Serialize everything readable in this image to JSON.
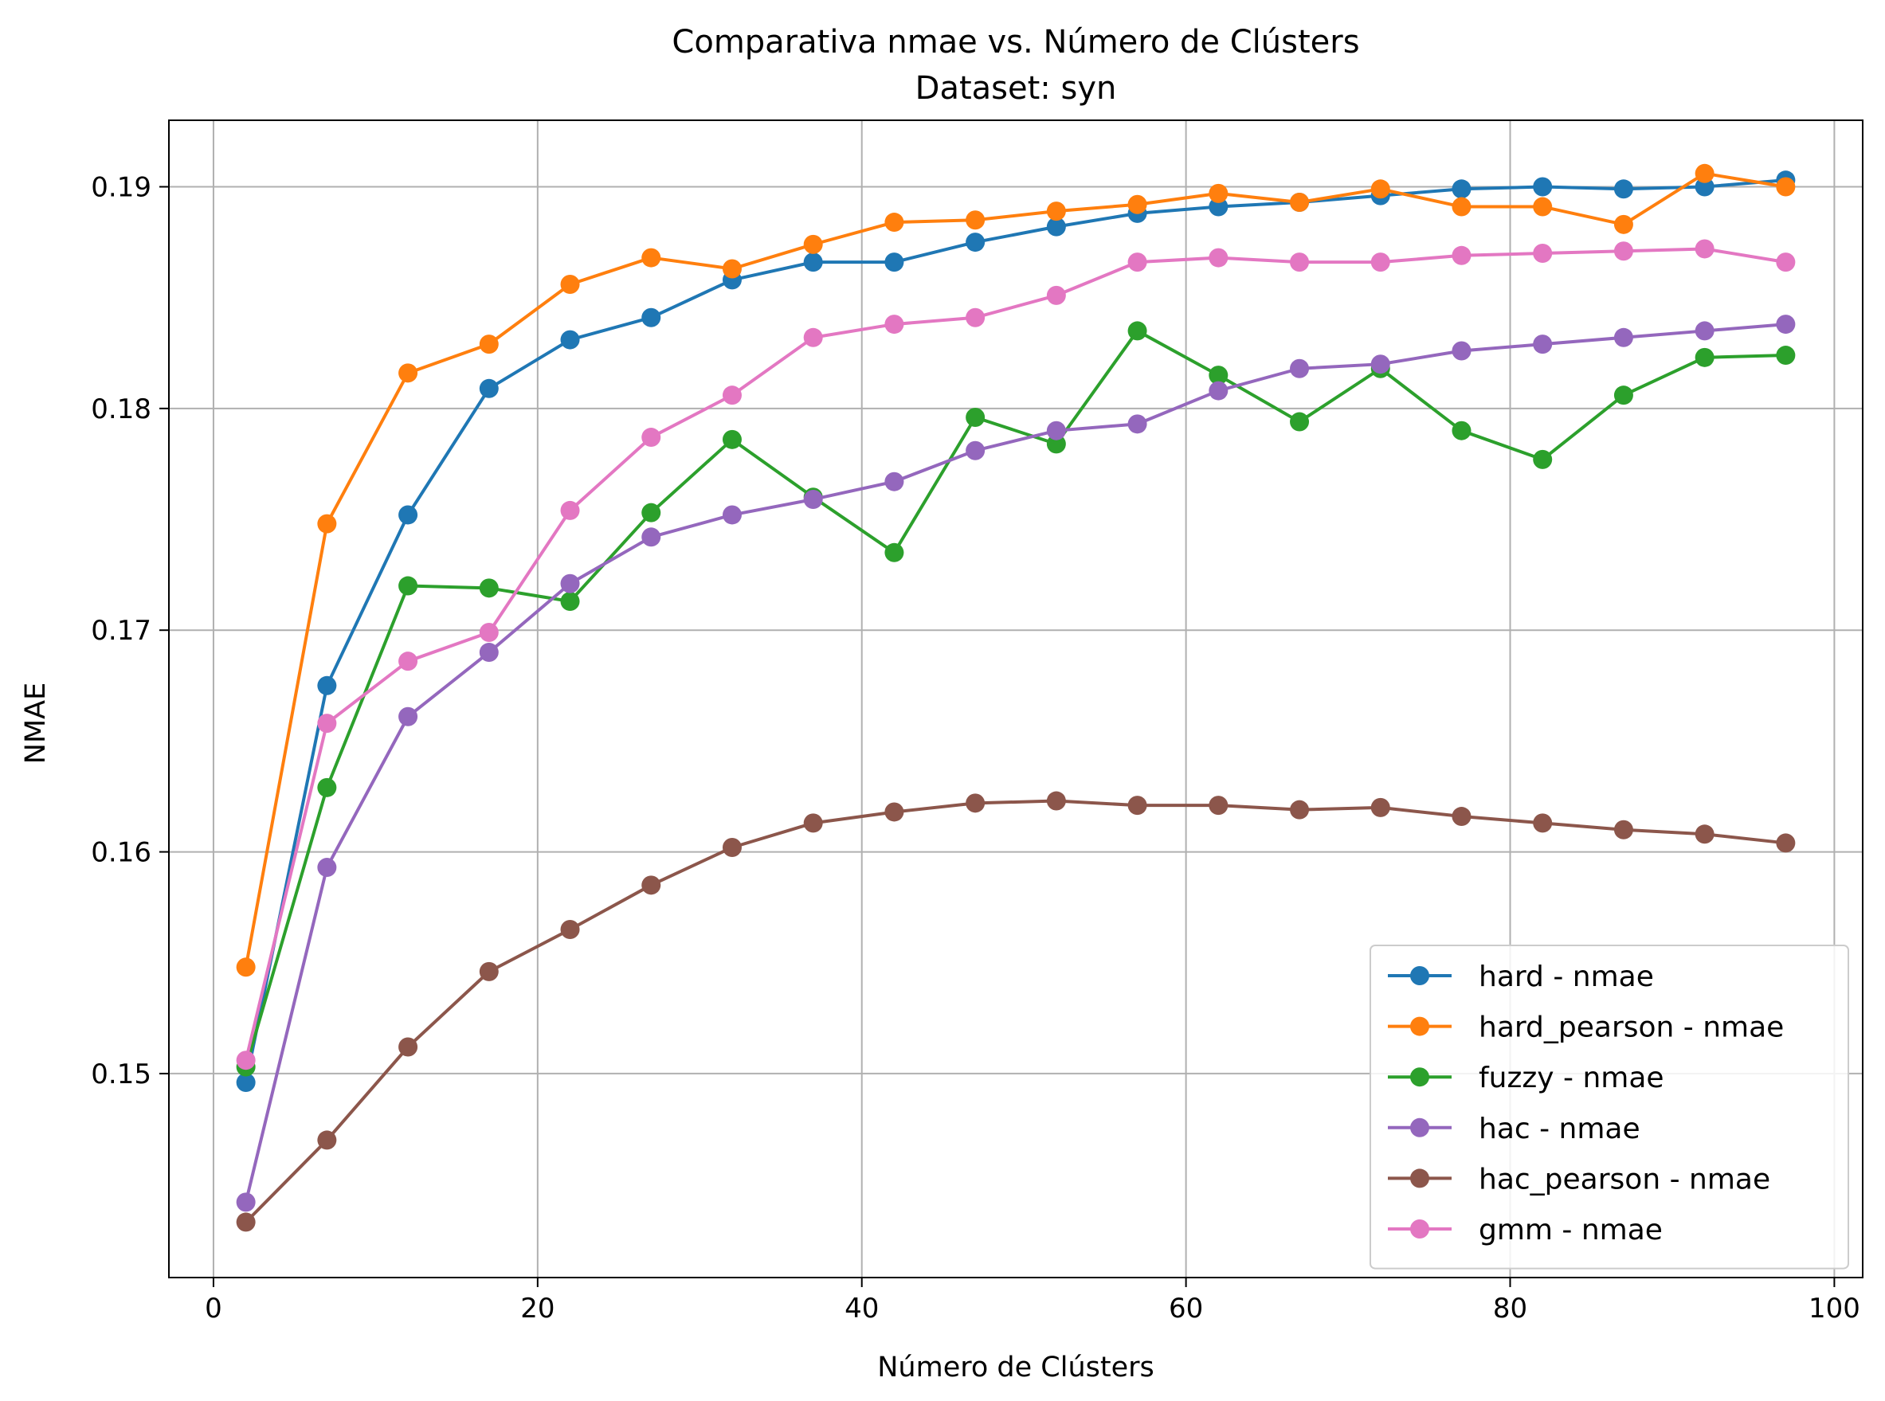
{
  "chart_data": {
    "type": "line",
    "title": "Comparativa nmae vs. Número de Clústers",
    "subtitle": "Dataset: syn",
    "xlabel": "Número de Clústers",
    "ylabel": "NMAE",
    "xlim": [
      -2.75,
      101.75
    ],
    "ylim": [
      0.1408,
      0.193
    ],
    "xticks": [
      0,
      20,
      40,
      60,
      80,
      100
    ],
    "xtick_labels": [
      "0",
      "20",
      "40",
      "60",
      "80",
      "100"
    ],
    "yticks": [
      0.15,
      0.16,
      0.17,
      0.18,
      0.19
    ],
    "ytick_labels": [
      "0.15",
      "0.16",
      "0.17",
      "0.18",
      "0.19"
    ],
    "grid": true,
    "legend_position": "bottom-right",
    "x": [
      2,
      7,
      12,
      17,
      22,
      27,
      32,
      37,
      42,
      47,
      52,
      57,
      62,
      67,
      72,
      77,
      82,
      87,
      92,
      97
    ],
    "series": [
      {
        "name": "hard - nmae",
        "color": "#1f77b4",
        "values": [
          0.1496,
          0.1675,
          0.1752,
          0.1809,
          0.1831,
          0.1841,
          0.1858,
          0.1866,
          0.1866,
          0.1875,
          0.1882,
          0.1888,
          0.1891,
          0.1893,
          0.1896,
          0.1899,
          0.19,
          0.1899,
          0.19,
          0.1903
        ]
      },
      {
        "name": "hard_pearson - nmae",
        "color": "#ff7f0e",
        "values": [
          0.1548,
          0.1748,
          0.1816,
          0.1829,
          0.1856,
          0.1868,
          0.1863,
          0.1874,
          0.1884,
          0.1885,
          0.1889,
          0.1892,
          0.1897,
          0.1893,
          0.1899,
          0.1891,
          0.1891,
          0.1883,
          0.1906,
          0.19
        ]
      },
      {
        "name": "fuzzy - nmae",
        "color": "#2ca02c",
        "values": [
          0.1503,
          0.1629,
          0.172,
          0.1719,
          0.1713,
          0.1753,
          0.1786,
          0.176,
          0.1735,
          0.1796,
          0.1784,
          0.1835,
          0.1815,
          0.1794,
          0.1818,
          0.179,
          0.1777,
          0.1806,
          0.1823,
          0.1824
        ]
      },
      {
        "name": "hac - nmae",
        "color": "#9467bd",
        "values": [
          0.1442,
          0.1593,
          0.1661,
          0.169,
          0.1721,
          0.1742,
          0.1752,
          0.1759,
          0.1767,
          0.1781,
          0.179,
          0.1793,
          0.1808,
          0.1818,
          0.182,
          0.1826,
          0.1829,
          0.1832,
          0.1835,
          0.1838
        ]
      },
      {
        "name": "hac_pearson - nmae",
        "color": "#8c564b",
        "values": [
          0.1433,
          0.147,
          0.1512,
          0.1546,
          0.1565,
          0.1585,
          0.1602,
          0.1613,
          0.1618,
          0.1622,
          0.1623,
          0.1621,
          0.1621,
          0.1619,
          0.162,
          0.1616,
          0.1613,
          0.161,
          0.1608,
          0.1604
        ]
      },
      {
        "name": "gmm - nmae",
        "color": "#e377c2",
        "values": [
          0.1506,
          0.1658,
          0.1686,
          0.1699,
          0.1754,
          0.1787,
          0.1806,
          0.1832,
          0.1838,
          0.1841,
          0.1851,
          0.1866,
          0.1868,
          0.1866,
          0.1866,
          0.1869,
          0.187,
          0.1871,
          0.1872,
          0.1866
        ]
      }
    ]
  }
}
